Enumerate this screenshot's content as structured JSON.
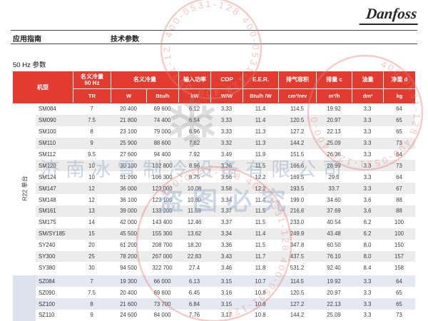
{
  "page": {
    "logo": "Danfoss",
    "nav_left": "应用指南",
    "nav_right": "技术参数",
    "section_title": "50 Hz 参数"
  },
  "table": {
    "model_header": "机型",
    "header_groups": [
      {
        "title": "名义冷量",
        "subtitle": "60 Hz",
        "units": [
          "TR"
        ]
      },
      {
        "title": "名义冷量",
        "subtitle": "",
        "units": [
          "W",
          "Btu/h"
        ]
      },
      {
        "title": "输入功率",
        "subtitle": "",
        "units": [
          "kW"
        ]
      },
      {
        "title": "COP",
        "subtitle": "",
        "units": [
          "W/W"
        ]
      },
      {
        "title": "E.E.R.",
        "subtitle": "",
        "units": [
          "Btu/h /W"
        ]
      },
      {
        "title": "排气容积",
        "subtitle": "",
        "units": [
          "cm³/rev"
        ]
      },
      {
        "title": "排量 c",
        "subtitle": "",
        "units": [
          "m³/h"
        ]
      },
      {
        "title": "油量",
        "subtitle": "",
        "units": [
          "dm³"
        ]
      },
      {
        "title": "净重 d",
        "subtitle": "",
        "units": [
          "kg"
        ]
      }
    ],
    "groups": [
      {
        "label": "R22 单台",
        "rows": [
          {
            "model": "SM084",
            "values": [
              "7",
              "20 400",
              "69 600",
              "6.12",
              "3.33",
              "11.4",
              "114.5",
              "19.92",
              "3.3",
              "64"
            ]
          },
          {
            "model": "SM090",
            "values": [
              "7.5",
              "21 800",
              "74 400",
              "6.54",
              "3.33",
              "11.4",
              "120.5",
              "20.97",
              "3.3",
              "65"
            ]
          },
          {
            "model": "SM100",
            "values": [
              "8",
              "23 100",
              "79 000",
              "6.96",
              "3.33",
              "11.3",
              "127.2",
              "22.13",
              "3.3",
              "65"
            ]
          },
          {
            "model": "SM110",
            "values": [
              "9",
              "25 900",
              "88 600",
              "7.82",
              "3.32",
              "11.3",
              "144.2",
              "25.09",
              "3.3",
              "73"
            ]
          },
          {
            "model": "SM112",
            "values": [
              "9.5",
              "27 600",
              "94 400",
              "7.92",
              "3.49",
              "11.9",
              "151.5",
              "26.36",
              "3.3",
              "64"
            ]
          },
          {
            "model": "SM120",
            "values": [
              "10",
              "30 100",
              "102 800",
              "8.96",
              "3.36",
              "11.5",
              "166.6",
              "28.99",
              "3.3",
              "73"
            ]
          },
          {
            "model": "SM124",
            "values": [
              "10",
              "31 200",
              "106 300",
              "8.75",
              "3.56",
              "12.2",
              "169.5",
              "29.5",
              "3.3",
              "64"
            ]
          },
          {
            "model": "SM147",
            "values": [
              "12",
              "36 000",
              "123 000",
              "10.08",
              "3.58",
              "12.2",
              "193.5",
              "33.7",
              "3.3",
              "67"
            ]
          },
          {
            "model": "SM148",
            "values": [
              "12",
              "36 100",
              "123 100",
              "10.80",
              "3.34",
              "11.4",
              "199.0",
              "34.60",
              "3.6",
              "88"
            ]
          },
          {
            "model": "SM161",
            "values": [
              "13",
              "39 000",
              "133 200",
              "11.59",
              "3.37",
              "11.5",
              "216.6",
              "37.69",
              "3.6",
              "88"
            ]
          },
          {
            "model": "SM175",
            "values": [
              "14",
              "42 000",
              "143 400",
              "12.46",
              "3.37",
              "11.5",
              "233.0",
              "40.54",
              "6.2",
              "100"
            ]
          },
          {
            "model": "SM/SY185",
            "values": [
              "15",
              "45 500",
              "155 300",
              "13.62",
              "3.34",
              "11.4",
              "249.9",
              "43.48",
              "6.2",
              "100"
            ]
          },
          {
            "model": "SY240",
            "values": [
              "20",
              "61 200",
              "208 700",
              "18.20",
              "3.36",
              "11.5",
              "347.8",
              "60.50",
              "8.0",
              "150"
            ]
          },
          {
            "model": "SY300",
            "values": [
              "25",
              "78 200",
              "267 000",
              "22.83",
              "3.43",
              "11.7",
              "437.5",
              "76.10",
              "8.0",
              "157"
            ]
          },
          {
            "model": "SY380",
            "values": [
              "30",
              "94 500",
              "322 700",
              "27.4",
              "3.46",
              "11.8",
              "531.2",
              "92.40",
              "8.4",
              "158"
            ]
          }
        ]
      },
      {
        "label": "",
        "rows": [
          {
            "model": "SZ084",
            "values": [
              "7",
              "19 300",
              "66 000",
              "6.13",
              "3.15",
              "10.7",
              "114.5",
              "19.92",
              "3.3",
              "64"
            ]
          },
          {
            "model": "SZ090",
            "values": [
              "7.5",
              "20 400",
              "69 600",
              "6.45",
              "3.16",
              "10.8",
              "120.5",
              "20.97",
              "3.3",
              "65"
            ]
          },
          {
            "model": "SZ100",
            "values": [
              "8",
              "21 600",
              "73 700",
              "6.84",
              "3.15",
              "10.8",
              "127.2",
              "22.13",
              "3.3",
              "65"
            ]
          },
          {
            "model": "SZ110",
            "values": [
              "9",
              "24 600",
              "84 000",
              "7.76",
              "3.17",
              "10.8",
              "144.2",
              "25.09",
              "3.3",
              "73"
            ]
          }
        ]
      }
    ]
  },
  "watermarks": {
    "company": "济南冰雪制冷设备有限公司",
    "warning": "盗图必究",
    "stamp_text": "400-0531-128",
    "snowflake": "❄"
  },
  "colors": {
    "header_red": "#E23C31",
    "stripe_gray": "#ECECEC",
    "stripe_blue": "#E4E9F1",
    "label_blue": "#DCE3EE",
    "stamp_red": "#E0837A",
    "watermark_blue": "#8FA8C6"
  }
}
